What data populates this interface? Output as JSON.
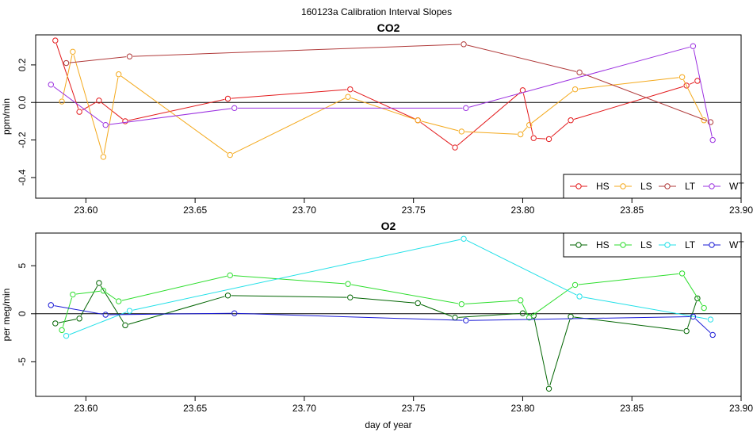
{
  "title": "160123a   Calibration Interval Slopes",
  "chart_data": [
    {
      "type": "line",
      "title": "CO2",
      "xlabel": "",
      "ylabel": "ppm/min",
      "xlim": [
        23.577,
        23.9
      ],
      "ylim": [
        -0.51,
        0.36
      ],
      "xticks": [
        "23.60",
        "23.65",
        "23.70",
        "23.75",
        "23.80",
        "23.85",
        "23.90"
      ],
      "yticks": [
        "-0.4",
        "-0.2",
        "0.0",
        "0.2"
      ],
      "legend_position": "bottom-right",
      "series": [
        {
          "name": "HS",
          "color": "#e31a1c",
          "x": [
            23.586,
            23.597,
            23.606,
            23.618,
            23.665,
            23.721,
            23.752,
            23.769,
            23.8,
            23.805,
            23.812,
            23.822,
            23.875,
            23.88
          ],
          "y": [
            0.33,
            -0.05,
            0.01,
            -0.1,
            0.02,
            0.07,
            -0.095,
            -0.24,
            0.065,
            -0.19,
            -0.195,
            -0.095,
            0.09,
            0.115
          ]
        },
        {
          "name": "LS",
          "color": "#f4a91c",
          "x": [
            23.589,
            23.594,
            23.608,
            23.615,
            23.666,
            23.72,
            23.752,
            23.772,
            23.799,
            23.803,
            23.824,
            23.873,
            23.883
          ],
          "y": [
            0.005,
            0.27,
            -0.29,
            0.15,
            -0.28,
            0.03,
            -0.095,
            -0.155,
            -0.17,
            -0.12,
            0.07,
            0.135,
            -0.095
          ]
        },
        {
          "name": "LT",
          "color": "#b03a3a",
          "x": [
            23.591,
            23.62,
            23.773,
            23.826,
            23.886
          ],
          "y": [
            0.21,
            0.245,
            0.31,
            0.16,
            -0.105
          ]
        },
        {
          "name": "WT",
          "color": "#9b30e0",
          "x": [
            23.584,
            23.609,
            23.668,
            23.774,
            23.878,
            23.887
          ],
          "y": [
            0.095,
            -0.12,
            -0.03,
            -0.03,
            0.3,
            -0.2
          ]
        }
      ]
    },
    {
      "type": "line",
      "title": "O2",
      "xlabel": "day of year",
      "ylabel": "per meg/min",
      "xlim": [
        23.577,
        23.9
      ],
      "ylim": [
        -8.6,
        8.4
      ],
      "xticks": [
        "23.60",
        "23.65",
        "23.70",
        "23.75",
        "23.80",
        "23.85",
        "23.90"
      ],
      "yticks": [
        "-5",
        "0",
        "5"
      ],
      "legend_position": "top-right",
      "series": [
        {
          "name": "HS",
          "color": "#006400",
          "x": [
            23.586,
            23.597,
            23.606,
            23.618,
            23.665,
            23.721,
            23.752,
            23.769,
            23.8,
            23.805,
            23.812,
            23.822,
            23.875,
            23.88
          ],
          "y": [
            -1.0,
            -0.5,
            3.2,
            -1.2,
            1.9,
            1.7,
            1.1,
            -0.4,
            0.05,
            -0.2,
            -7.8,
            -0.3,
            -1.8,
            1.6
          ]
        },
        {
          "name": "LS",
          "color": "#2dde2d",
          "x": [
            23.589,
            23.594,
            23.608,
            23.615,
            23.666,
            23.72,
            23.772,
            23.799,
            23.803,
            23.824,
            23.873,
            23.883
          ],
          "y": [
            -1.7,
            2.0,
            2.4,
            1.3,
            4.0,
            3.1,
            1.0,
            1.4,
            -0.4,
            3.0,
            4.2,
            0.6
          ]
        },
        {
          "name": "LT",
          "color": "#22e0e8",
          "x": [
            23.591,
            23.62,
            23.773,
            23.826,
            23.886
          ],
          "y": [
            -2.3,
            0.3,
            7.8,
            1.8,
            -0.6
          ]
        },
        {
          "name": "WT",
          "color": "#1a1ad6",
          "x": [
            23.584,
            23.609,
            23.668,
            23.774,
            23.878,
            23.887
          ],
          "y": [
            0.9,
            -0.1,
            0.05,
            -0.7,
            -0.3,
            -2.2
          ]
        }
      ]
    }
  ]
}
